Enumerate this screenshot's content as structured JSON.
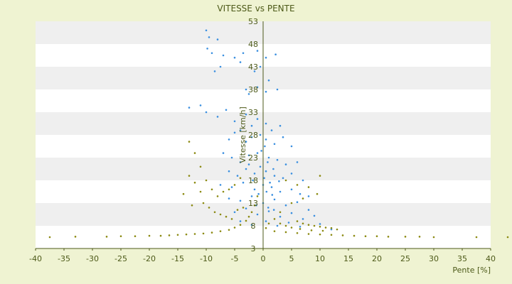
{
  "chart_data": {
    "type": "scatter",
    "title": "VITESSE vs PENTE",
    "xlabel": "Pente [%]",
    "ylabel": "Vitesse [km/h]",
    "xlim": [
      -40,
      40
    ],
    "ylim": [
      3,
      53
    ],
    "x_ticks": [
      "-40",
      "-35",
      "-30",
      "-25",
      "-20",
      "-15",
      "-10",
      "-5",
      "0",
      "5",
      "10",
      "15",
      "20",
      "25",
      "30",
      "35",
      "40"
    ],
    "y_ticks": [
      "3",
      "8",
      "13",
      "18",
      "23",
      "28",
      "33",
      "38",
      "43",
      "48",
      "53"
    ],
    "grid": "horizontal bands",
    "legend": "none",
    "colors": {
      "series_blue": "#3a8fe0",
      "series_olive": "#8c8a12",
      "axis": "#4d5a19",
      "band_light": "#ffffff",
      "band_shade": "#efefef",
      "background": "#eff3d2"
    },
    "series": [
      {
        "marker_color": "#3a8fe0",
        "points": [
          [
            -10,
            51
          ],
          [
            -9.5,
            49.5
          ],
          [
            -8,
            49
          ],
          [
            -9.8,
            47
          ],
          [
            -9,
            46
          ],
          [
            -7,
            45.5
          ],
          [
            -5,
            45
          ],
          [
            -3.5,
            46
          ],
          [
            -1,
            46.5
          ],
          [
            0.5,
            45
          ],
          [
            2.2,
            45.7
          ],
          [
            -8.5,
            42
          ],
          [
            -7.5,
            43
          ],
          [
            -4,
            44
          ],
          [
            -1.5,
            42
          ],
          [
            -0.5,
            43
          ],
          [
            1,
            40
          ],
          [
            -3,
            38
          ],
          [
            -2.5,
            37
          ],
          [
            -1,
            38.5
          ],
          [
            0.5,
            37.5
          ],
          [
            2.5,
            38
          ],
          [
            -13,
            34
          ],
          [
            -11,
            34.5
          ],
          [
            -10,
            33
          ],
          [
            -8,
            32
          ],
          [
            -6.5,
            33.5
          ],
          [
            -5,
            31
          ],
          [
            -3,
            32.5
          ],
          [
            -4,
            29
          ],
          [
            -2,
            30
          ],
          [
            -1,
            31.5
          ],
          [
            0.5,
            30.5
          ],
          [
            1.5,
            29
          ],
          [
            3,
            30
          ],
          [
            -6,
            27
          ],
          [
            -5,
            28.5
          ],
          [
            -3,
            26.5
          ],
          [
            -2,
            27.5
          ],
          [
            -0.5,
            28
          ],
          [
            0.5,
            27
          ],
          [
            2,
            26
          ],
          [
            3.5,
            27.5
          ],
          [
            5,
            25.5
          ],
          [
            -7,
            24
          ],
          [
            -5.5,
            23
          ],
          [
            -4,
            22
          ],
          [
            -2.5,
            23.5
          ],
          [
            -1,
            24
          ],
          [
            1,
            23
          ],
          [
            2.5,
            22.5
          ],
          [
            4,
            21.5
          ],
          [
            6,
            22
          ],
          [
            -6,
            20
          ],
          [
            -4.5,
            19
          ],
          [
            -3,
            20.5
          ],
          [
            -1.5,
            19.5
          ],
          [
            0.5,
            20
          ],
          [
            2,
            19
          ],
          [
            3.5,
            18.5
          ],
          [
            5,
            19.5
          ],
          [
            7,
            18
          ],
          [
            -7.5,
            17
          ],
          [
            -5.5,
            16.5
          ],
          [
            -3.5,
            17.5
          ],
          [
            -1.5,
            16
          ],
          [
            0,
            17
          ],
          [
            1.5,
            16.5
          ],
          [
            3,
            15.5
          ],
          [
            5,
            16
          ],
          [
            6.5,
            15
          ],
          [
            8,
            14.5
          ],
          [
            -6,
            14
          ],
          [
            -4,
            13.5
          ],
          [
            -2,
            14.5
          ],
          [
            0,
            13
          ],
          [
            2,
            13.8
          ],
          [
            4,
            12.5
          ],
          [
            6,
            13.2
          ],
          [
            8,
            11.5
          ],
          [
            -5,
            11
          ],
          [
            -3,
            11.8
          ],
          [
            -1,
            10.5
          ],
          [
            1,
            11.2
          ],
          [
            3,
            10
          ],
          [
            5,
            10.8
          ],
          [
            7,
            9.5
          ],
          [
            9,
            10.2
          ],
          [
            -4,
            9
          ],
          [
            -2,
            8.2
          ],
          [
            0.5,
            9
          ],
          [
            2.5,
            8
          ],
          [
            4.5,
            8.7
          ],
          [
            6.5,
            7.8
          ],
          [
            10,
            8.4
          ],
          [
            12,
            7.2
          ],
          [
            -2.5,
            21.5
          ],
          [
            -0.5,
            21
          ],
          [
            0.8,
            22
          ],
          [
            1.8,
            20.5
          ],
          [
            -1.8,
            18
          ],
          [
            0.2,
            18.5
          ],
          [
            1.2,
            17.5
          ],
          [
            2.8,
            17.8
          ],
          [
            -0.8,
            15
          ],
          [
            0.6,
            15.5
          ],
          [
            1.6,
            14.8
          ],
          [
            -1.2,
            12.5
          ],
          [
            0.9,
            12
          ],
          [
            1.9,
            11.5
          ],
          [
            -0.3,
            24.5
          ],
          [
            0.3,
            25.5
          ]
        ]
      },
      {
        "marker_color": "#8c8a12",
        "points": [
          [
            -37.5,
            5.5
          ],
          [
            -33,
            5.6
          ],
          [
            -27.5,
            5.6
          ],
          [
            -25,
            5.7
          ],
          [
            -22.5,
            5.7
          ],
          [
            -20,
            5.8
          ],
          [
            -18,
            5.8
          ],
          [
            -16.5,
            5.9
          ],
          [
            -15,
            6
          ],
          [
            -13.5,
            6.1
          ],
          [
            -12,
            6.2
          ],
          [
            -10.5,
            6.3
          ],
          [
            -9,
            6.5
          ],
          [
            -7.5,
            6.8
          ],
          [
            -6,
            7.1
          ],
          [
            -5,
            7.6
          ],
          [
            -4,
            8.2
          ],
          [
            -3,
            9.1
          ],
          [
            -2.5,
            10
          ],
          [
            -2,
            11
          ],
          [
            -1.5,
            12.5
          ],
          [
            -1,
            14.5
          ],
          [
            -13,
            26.5
          ],
          [
            -12,
            24
          ],
          [
            -11,
            21
          ],
          [
            -10,
            18
          ],
          [
            -9,
            16
          ],
          [
            -8,
            14.5
          ],
          [
            -7,
            15.5
          ],
          [
            -6,
            16
          ],
          [
            -5,
            17
          ],
          [
            -4,
            18.5
          ],
          [
            -10.5,
            13
          ],
          [
            -9.5,
            12
          ],
          [
            -8.5,
            11
          ],
          [
            -7.5,
            10.5
          ],
          [
            -6.5,
            10
          ],
          [
            -5.5,
            9.5
          ],
          [
            -4.5,
            11.5
          ],
          [
            -3.5,
            12
          ],
          [
            -12,
            17.5
          ],
          [
            -11,
            15.5
          ],
          [
            -13,
            19
          ],
          [
            -14,
            15
          ],
          [
            -12.5,
            12.5
          ],
          [
            4,
            18
          ],
          [
            6,
            17
          ],
          [
            8,
            16.5
          ],
          [
            9.5,
            15
          ],
          [
            10,
            19
          ],
          [
            7,
            14
          ],
          [
            5,
            13
          ],
          [
            3,
            11
          ],
          [
            2,
            9.5
          ],
          [
            1,
            8.5
          ],
          [
            0.5,
            7.5
          ],
          [
            2,
            6.8
          ],
          [
            4,
            6.6
          ],
          [
            6,
            6.4
          ],
          [
            8,
            6.2
          ],
          [
            10,
            6.1
          ],
          [
            12,
            6
          ],
          [
            14,
            5.9
          ],
          [
            16,
            5.8
          ],
          [
            18,
            5.7
          ],
          [
            20,
            5.7
          ],
          [
            22,
            5.6
          ],
          [
            25,
            5.6
          ],
          [
            27.5,
            5.6
          ],
          [
            30,
            5.5
          ],
          [
            37.5,
            5.5
          ],
          [
            43,
            5.5
          ],
          [
            6,
            9
          ],
          [
            7,
            8.5
          ],
          [
            8,
            8.2
          ],
          [
            9,
            8
          ],
          [
            10,
            7.8
          ],
          [
            11,
            7.6
          ],
          [
            12,
            7.5
          ],
          [
            13,
            7.2
          ],
          [
            3,
            8.5
          ],
          [
            4,
            8
          ],
          [
            5,
            7.6
          ],
          [
            6.5,
            7.3
          ],
          [
            8.5,
            7
          ],
          [
            10.5,
            6.9
          ]
        ]
      }
    ]
  }
}
